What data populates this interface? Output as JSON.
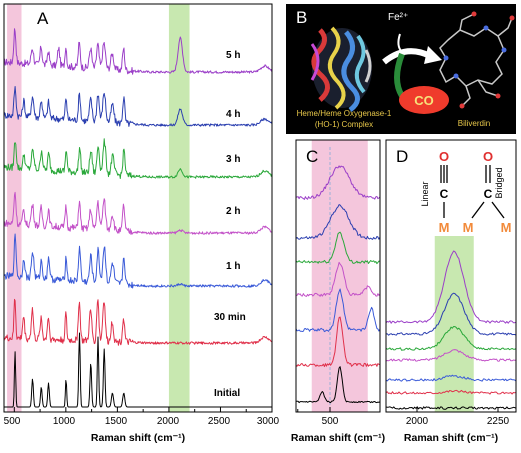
{
  "panels": {
    "a": {
      "label": "A",
      "xlabel": "Raman shift (cm⁻¹)",
      "xticks": [
        "500",
        "1000",
        "1500",
        "2000",
        "2500",
        "3000"
      ],
      "time_labels": [
        "5 h",
        "4 h",
        "3 h",
        "2 h",
        "1 h",
        "30 min",
        "Initial"
      ]
    },
    "b": {
      "label": "B",
      "fe_label": "Fe²⁺",
      "co_label": "CO",
      "complex_label_1": "Heme/Heme Oxygenase-1",
      "complex_label_2": "(HO-1) Complex",
      "product_label": "Biliverdin"
    },
    "c": {
      "label": "C",
      "xlabel": "Raman shift (cm⁻¹)",
      "xticks": [
        "500"
      ]
    },
    "d": {
      "label": "D",
      "xlabel": "Raman shift (cm⁻¹)",
      "xticks": [
        "2000",
        "2250"
      ],
      "linear_label": "Linear",
      "bridged_label": "Bridged",
      "atom_o": "O",
      "atom_c": "C",
      "atom_m": "M"
    }
  },
  "chart_data": [
    {
      "type": "line",
      "panel": "A",
      "xlabel": "Raman shift (cm⁻¹)",
      "xlim": [
        400,
        3000
      ],
      "highlight_bands": [
        {
          "x": [
            430,
            570
          ],
          "color": "#f4c6dc"
        },
        {
          "x": [
            2000,
            2200
          ],
          "color": "#c8e8b0"
        }
      ],
      "series": [
        {
          "name": "5 h",
          "color": "#9b3fc8",
          "co_peak_cm": 2110
        },
        {
          "name": "4 h",
          "color": "#2b3fb0",
          "co_peak_cm": 2110
        },
        {
          "name": "3 h",
          "color": "#2aa83a",
          "co_peak_cm": 2110
        },
        {
          "name": "2 h",
          "color": "#c352c8",
          "co_peak_cm": 2110
        },
        {
          "name": "1 h",
          "color": "#3a5ad8",
          "co_peak_cm": 2110
        },
        {
          "name": "30 min",
          "color": "#e0304a",
          "co_peak_cm": 2110
        },
        {
          "name": "Initial",
          "color": "#000000",
          "co_peak_cm": null
        }
      ]
    },
    {
      "type": "line",
      "panel": "C",
      "xlabel": "Raman shift (cm⁻¹)",
      "xlim": [
        380,
        620
      ],
      "peak_cm": 505,
      "highlight_band": {
        "x": [
          425,
          585
        ],
        "color": "#f4c6dc"
      }
    },
    {
      "type": "line",
      "panel": "D",
      "xlabel": "Raman shift (cm⁻¹)",
      "xlim": [
        1900,
        2300
      ],
      "peak_cm": 2110,
      "highlight_band": {
        "x": [
          2050,
          2170
        ],
        "color": "#c8e8b0"
      }
    }
  ]
}
